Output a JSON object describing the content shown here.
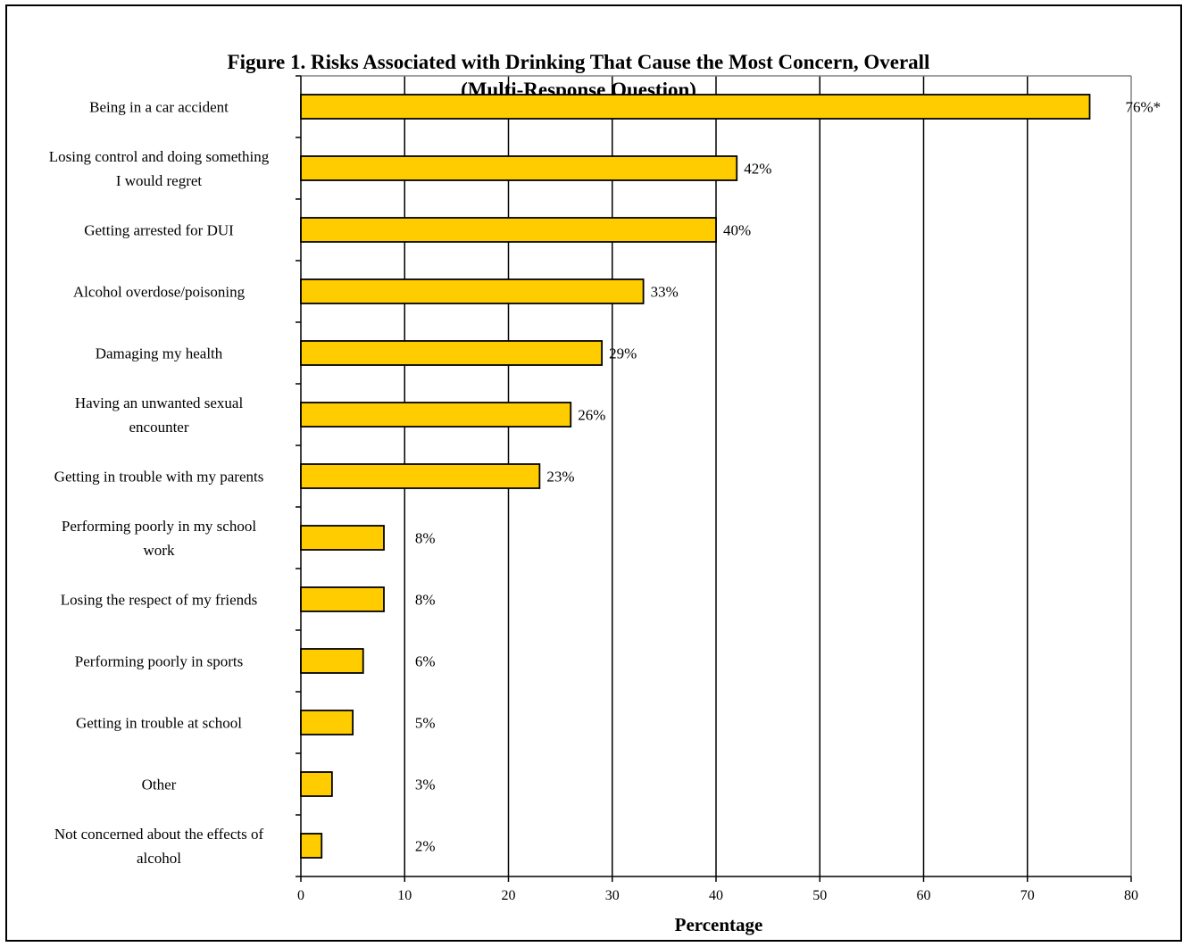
{
  "chart_data": {
    "type": "bar",
    "orientation": "horizontal",
    "title": "Figure 1.  Risks Associated with Drinking That Cause the Most Concern, Overall",
    "subtitle": "(Multi-Response Question)",
    "xlabel": "Percentage",
    "ylabel": "",
    "xlim": [
      0,
      80
    ],
    "x_ticks": [
      0,
      10,
      20,
      30,
      40,
      50,
      60,
      70,
      80
    ],
    "grid": true,
    "bar_color": "#FFCC00",
    "categories": [
      [
        "Being in a car accident"
      ],
      [
        "Losing control and doing something",
        "I would regret"
      ],
      [
        "Getting arrested for DUI"
      ],
      [
        "Alcohol overdose/poisoning"
      ],
      [
        "Damaging my health"
      ],
      [
        "Having an unwanted sexual",
        "encounter"
      ],
      [
        "Getting in trouble with my parents"
      ],
      [
        "Performing poorly in my school",
        "work"
      ],
      [
        "Losing the respect of my friends"
      ],
      [
        "Performing poorly in sports"
      ],
      [
        "Getting in trouble at school"
      ],
      [
        "Other"
      ],
      [
        "Not concerned about the effects of",
        "alcohol"
      ]
    ],
    "values": [
      76,
      42,
      40,
      33,
      29,
      26,
      23,
      8,
      8,
      6,
      5,
      3,
      2
    ],
    "data_labels": [
      "76%*",
      "42%",
      "40%",
      "33%",
      "29%",
      "26%",
      "23%",
      "8%",
      "8%",
      "6%",
      "5%",
      "3%",
      "2%"
    ]
  }
}
